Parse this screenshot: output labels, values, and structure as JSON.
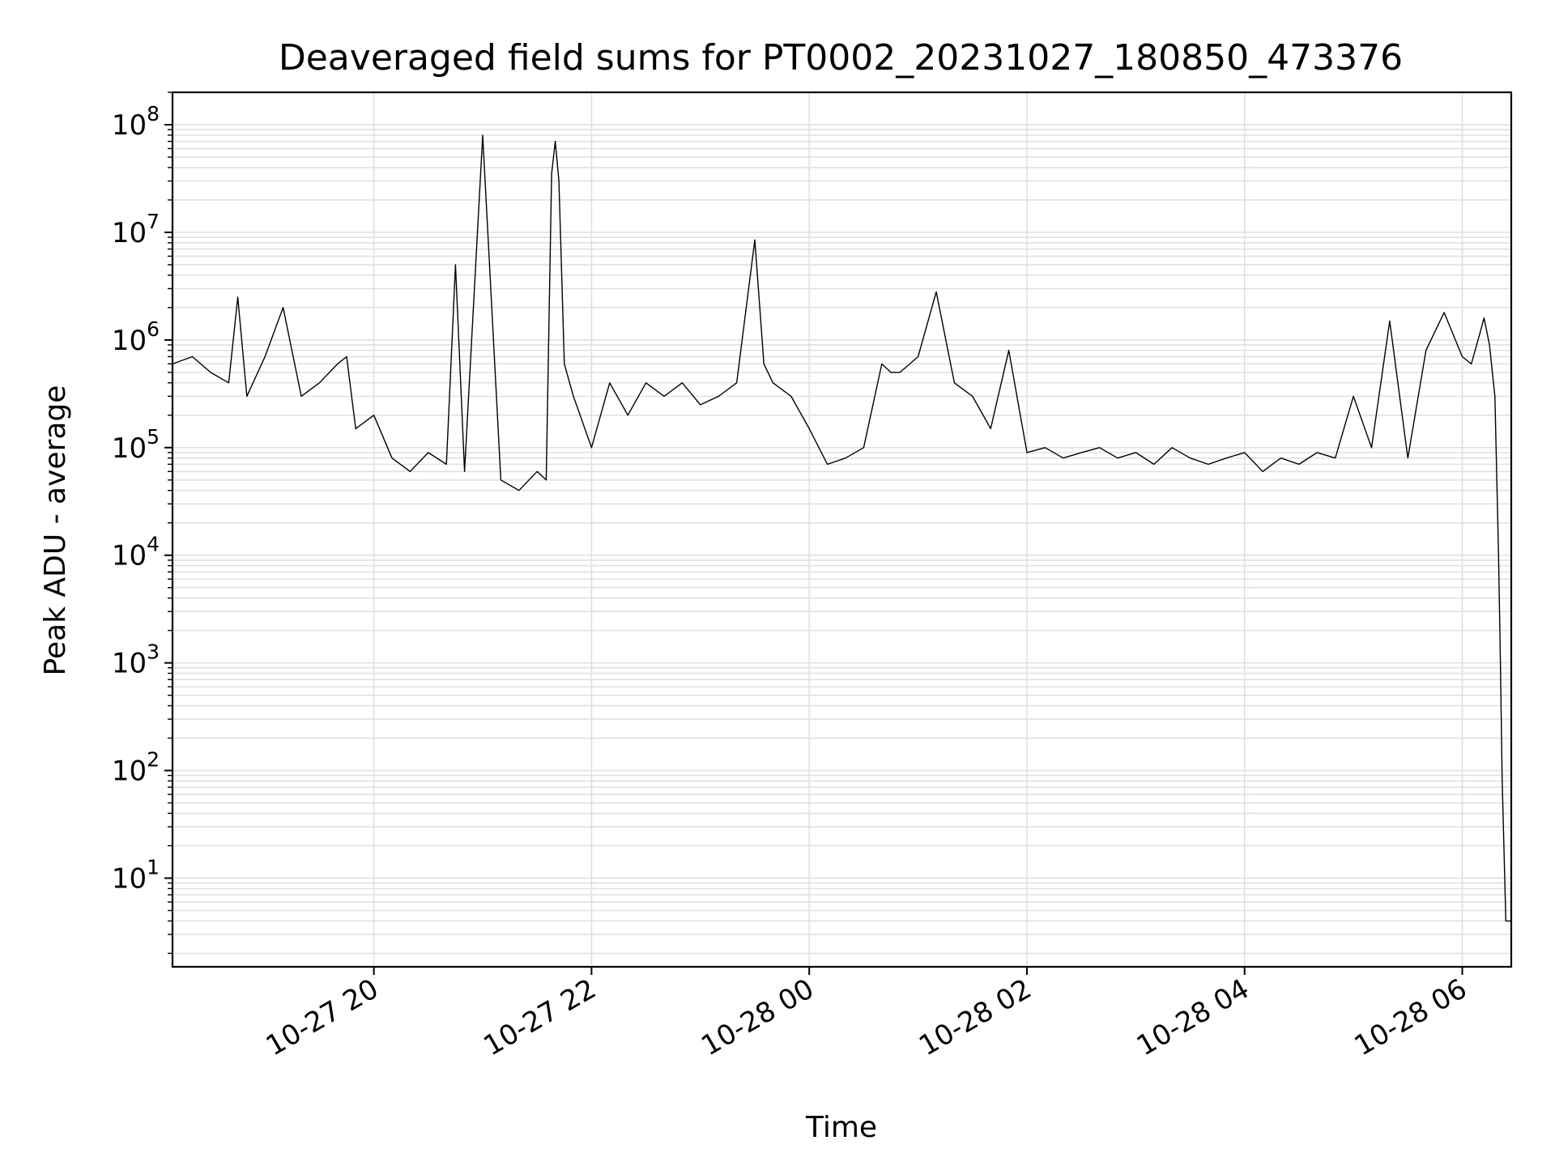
{
  "chart_data": {
    "type": "line",
    "title": "Deaveraged field sums for PT0002_20231027_180850_473376",
    "xlabel": "Time",
    "ylabel": "Peak ADU - average",
    "yscale": "log",
    "ylim": [
      1.5,
      200000000
    ],
    "xlim": [
      "2023-10-27 18:09",
      "2023-10-28 06:27"
    ],
    "grid": true,
    "line_color": "#000000",
    "grid_color": "#e0e0e0",
    "x_ticks": [
      {
        "label": "10-27 20",
        "value": "2023-10-27 20:00"
      },
      {
        "label": "10-27 22",
        "value": "2023-10-27 22:00"
      },
      {
        "label": "10-28 00",
        "value": "2023-10-28 00:00"
      },
      {
        "label": "10-28 02",
        "value": "2023-10-28 02:00"
      },
      {
        "label": "10-28 04",
        "value": "2023-10-28 04:00"
      },
      {
        "label": "10-28 06",
        "value": "2023-10-28 06:00"
      }
    ],
    "y_ticks": [
      {
        "base": "10",
        "exp": "1",
        "value": 10
      },
      {
        "base": "10",
        "exp": "2",
        "value": 100
      },
      {
        "base": "10",
        "exp": "3",
        "value": 1000
      },
      {
        "base": "10",
        "exp": "4",
        "value": 10000
      },
      {
        "base": "10",
        "exp": "5",
        "value": 100000
      },
      {
        "base": "10",
        "exp": "6",
        "value": 1000000
      },
      {
        "base": "10",
        "exp": "7",
        "value": 10000000
      },
      {
        "base": "10",
        "exp": "8",
        "value": 100000000
      }
    ],
    "series": [
      {
        "x": [
          "2023-10-27 18:09",
          "2023-10-27 18:20",
          "2023-10-27 18:30",
          "2023-10-27 18:40",
          "2023-10-27 18:45",
          "2023-10-27 18:50",
          "2023-10-27 19:00",
          "2023-10-27 19:10",
          "2023-10-27 19:20",
          "2023-10-27 19:30",
          "2023-10-27 19:40",
          "2023-10-27 19:45",
          "2023-10-27 19:50",
          "2023-10-27 20:00",
          "2023-10-27 20:10",
          "2023-10-27 20:20",
          "2023-10-27 20:30",
          "2023-10-27 20:40",
          "2023-10-27 20:45",
          "2023-10-27 20:50",
          "2023-10-27 21:00",
          "2023-10-27 21:10",
          "2023-10-27 21:20",
          "2023-10-27 21:30",
          "2023-10-27 21:35",
          "2023-10-27 21:38",
          "2023-10-27 21:40",
          "2023-10-27 21:42",
          "2023-10-27 21:45",
          "2023-10-27 21:50",
          "2023-10-27 22:00",
          "2023-10-27 22:10",
          "2023-10-27 22:20",
          "2023-10-27 22:30",
          "2023-10-27 22:40",
          "2023-10-27 22:50",
          "2023-10-27 23:00",
          "2023-10-27 23:10",
          "2023-10-27 23:20",
          "2023-10-27 23:30",
          "2023-10-27 23:35",
          "2023-10-27 23:40",
          "2023-10-27 23:50",
          "2023-10-28 00:00",
          "2023-10-28 00:10",
          "2023-10-28 00:20",
          "2023-10-28 00:30",
          "2023-10-28 00:40",
          "2023-10-28 00:45",
          "2023-10-28 00:50",
          "2023-10-28 01:00",
          "2023-10-28 01:10",
          "2023-10-28 01:20",
          "2023-10-28 01:30",
          "2023-10-28 01:40",
          "2023-10-28 01:50",
          "2023-10-28 02:00",
          "2023-10-28 02:10",
          "2023-10-28 02:20",
          "2023-10-28 02:30",
          "2023-10-28 02:40",
          "2023-10-28 02:50",
          "2023-10-28 03:00",
          "2023-10-28 03:10",
          "2023-10-28 03:20",
          "2023-10-28 03:30",
          "2023-10-28 03:40",
          "2023-10-28 03:50",
          "2023-10-28 04:00",
          "2023-10-28 04:10",
          "2023-10-28 04:20",
          "2023-10-28 04:30",
          "2023-10-28 04:40",
          "2023-10-28 04:50",
          "2023-10-28 05:00",
          "2023-10-28 05:10",
          "2023-10-28 05:20",
          "2023-10-28 05:30",
          "2023-10-28 05:40",
          "2023-10-28 05:50",
          "2023-10-28 06:00",
          "2023-10-28 06:05",
          "2023-10-28 06:10",
          "2023-10-28 06:12",
          "2023-10-28 06:15",
          "2023-10-28 06:18",
          "2023-10-28 06:20",
          "2023-10-28 06:21",
          "2023-10-28 06:22",
          "2023-10-28 06:24",
          "2023-10-28 06:27"
        ],
        "y": [
          600000,
          700000,
          500000,
          400000,
          2500000,
          300000,
          700000,
          2000000,
          300000,
          400000,
          600000,
          700000,
          150000,
          200000,
          80000,
          60000,
          90000,
          70000,
          5000000,
          60000,
          80000000,
          50000,
          40000,
          60000,
          50000,
          35000000,
          70000000,
          30000000,
          600000,
          300000,
          100000,
          400000,
          200000,
          400000,
          300000,
          400000,
          250000,
          300000,
          400000,
          8500000,
          600000,
          400000,
          300000,
          150000,
          70000,
          80000,
          100000,
          600000,
          500000,
          500000,
          700000,
          2800000,
          400000,
          300000,
          150000,
          800000,
          90000,
          100000,
          80000,
          90000,
          100000,
          80000,
          90000,
          70000,
          100000,
          80000,
          70000,
          80000,
          90000,
          60000,
          80000,
          70000,
          90000,
          80000,
          300000,
          100000,
          1500000,
          80000,
          800000,
          1800000,
          700000,
          600000,
          1200000,
          1600000,
          900000,
          300000,
          10000,
          1000,
          80,
          4,
          4
        ]
      }
    ]
  }
}
